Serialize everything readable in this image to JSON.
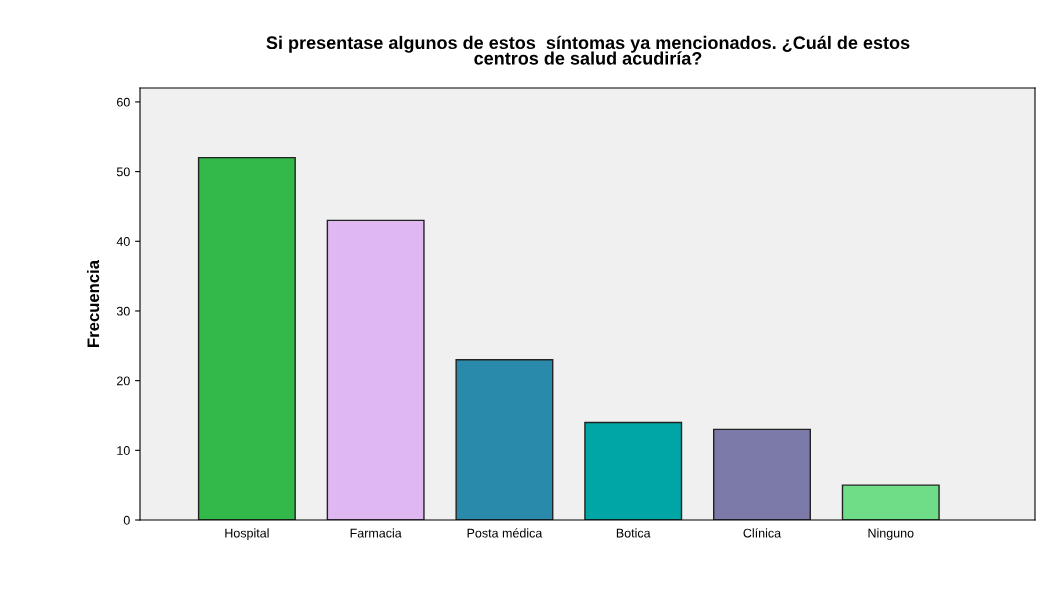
{
  "chart_data": {
    "type": "bar",
    "title": "Si presentase algunos de estos  síntomas ya mencionados. ¿Cuál de estos\ncentros de salud acudiría?",
    "ylabel": "Frecuencia",
    "categories": [
      "Hospital",
      "Farmacia",
      "Posta médica",
      "Botica",
      "Clínica",
      "Ninguno"
    ],
    "values": [
      52,
      43,
      23,
      14,
      13,
      5
    ],
    "colors": [
      "#33b84a",
      "#dfb8f2",
      "#2a8aab",
      "#00a6a6",
      "#7b7aa8",
      "#6fdc87"
    ],
    "ylim": [
      0,
      62
    ],
    "yticks": [
      0,
      10,
      20,
      30,
      40,
      50,
      60
    ],
    "grid": false,
    "legend": false
  }
}
